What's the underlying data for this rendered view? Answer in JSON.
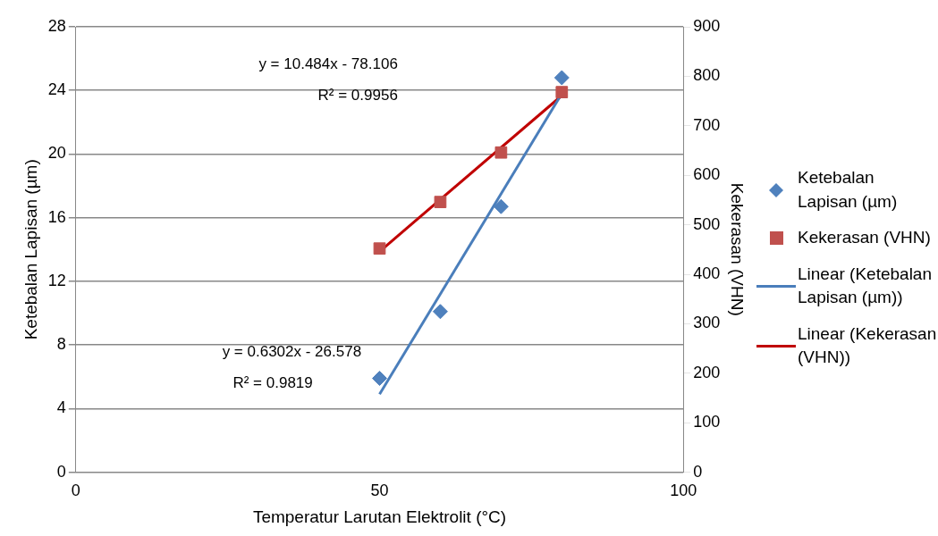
{
  "chart_data": {
    "type": "scatter",
    "xlabel": "Temperatur Larutan Elektrolit (°C)",
    "ylabel": "Ketebalan Lapisan (µm)",
    "y2label": "Kekerasan (VHN)",
    "xlim": [
      0,
      100
    ],
    "xticks": [
      0,
      50,
      100
    ],
    "ylim": [
      0,
      28
    ],
    "yticks": [
      0,
      4,
      8,
      12,
      16,
      20,
      24,
      28
    ],
    "y2lim": [
      0,
      900
    ],
    "y2ticks": [
      0,
      100,
      200,
      300,
      400,
      500,
      600,
      700,
      800,
      900
    ],
    "grid": "y",
    "legend": "right",
    "series": [
      {
        "name": "Ketebalan Lapisan (µm)",
        "marker": "diamond",
        "color": "#4f81bd",
        "x": [
          50,
          60,
          70,
          80
        ],
        "values": [
          5.9,
          10.1,
          16.7,
          24.8
        ]
      },
      {
        "name": "Kekerasan (VHN)",
        "marker": "square",
        "axis": "y2",
        "color": "#c0504d",
        "x": [
          50,
          60,
          70,
          80
        ],
        "values": [
          452,
          546,
          646,
          768
        ]
      },
      {
        "name": "Linear (Ketebalan Lapisan (µm))",
        "type": "line",
        "marker": "none",
        "color": "#4a7ebb",
        "x": [
          50,
          80
        ],
        "values": [
          4.9,
          23.8
        ]
      },
      {
        "name": "Linear (Kekerasan (VHN))",
        "type": "line",
        "marker": "none",
        "axis": "y2",
        "color": "#c00000",
        "x": [
          50,
          80
        ],
        "values": [
          446,
          761
        ]
      }
    ],
    "annotations": [
      "y = 10.484x - 78.106",
      "R² = 0.9956",
      "y = 0.6302x - 26.578",
      "R² = 0.9819"
    ]
  }
}
